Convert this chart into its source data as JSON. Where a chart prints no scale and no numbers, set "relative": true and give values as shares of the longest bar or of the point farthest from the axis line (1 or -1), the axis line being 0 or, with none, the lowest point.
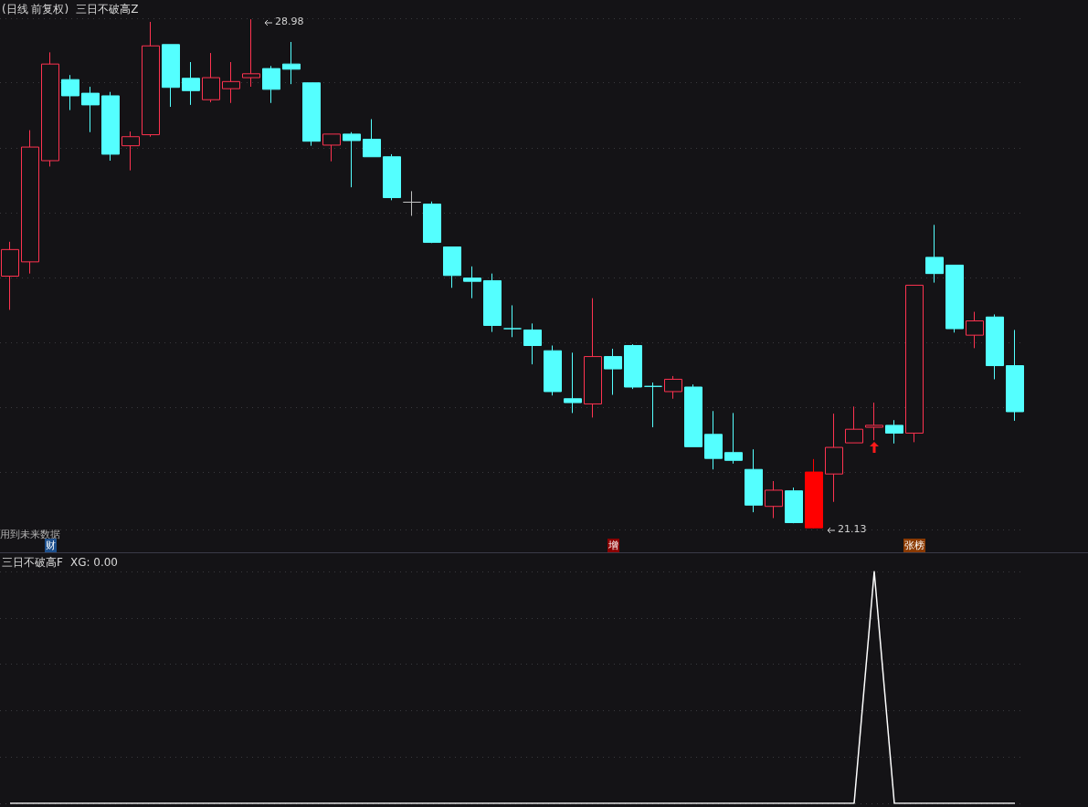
{
  "chart_data": [
    {
      "type": "candlestick",
      "title": "(日线 前复权)",
      "subtitle": "三日不破高Z",
      "grid": "y",
      "categories": [
        null,
        null,
        null,
        null,
        null,
        null,
        null,
        null,
        null,
        null,
        null,
        null,
        null,
        null,
        null,
        null,
        null,
        null,
        null,
        null,
        null,
        null,
        null,
        null,
        null,
        null,
        null,
        null,
        null,
        null,
        null,
        null,
        null,
        null,
        null,
        null,
        null,
        null,
        null,
        null,
        null,
        null,
        null,
        null,
        null,
        null,
        null,
        null,
        null,
        null,
        null
      ],
      "ohlc": [
        [
          25.02,
          25.55,
          24.5,
          25.43
        ],
        [
          25.24,
          27.27,
          25.06,
          27.01
        ],
        [
          26.8,
          28.47,
          26.71,
          28.29
        ],
        [
          28.05,
          28.12,
          27.58,
          27.8
        ],
        [
          27.84,
          27.94,
          27.24,
          27.66
        ],
        [
          27.8,
          27.86,
          26.8,
          26.9
        ],
        [
          27.03,
          27.25,
          26.65,
          27.17
        ],
        [
          27.2,
          28.94,
          27.17,
          28.57
        ],
        [
          28.59,
          28.59,
          27.63,
          27.93
        ],
        [
          28.07,
          28.32,
          27.66,
          27.88
        ],
        [
          27.74,
          28.46,
          27.7,
          28.08
        ],
        [
          27.91,
          28.32,
          27.69,
          28.02
        ],
        [
          28.08,
          28.98,
          27.94,
          28.14
        ],
        [
          28.22,
          28.26,
          27.69,
          27.9
        ],
        [
          28.29,
          28.63,
          27.98,
          28.21
        ],
        [
          28.0,
          28.0,
          27.03,
          27.1
        ],
        [
          27.04,
          27.21,
          26.79,
          27.21
        ],
        [
          27.21,
          27.24,
          26.39,
          27.11
        ],
        [
          27.13,
          27.44,
          26.86,
          26.86
        ],
        [
          26.86,
          26.9,
          26.19,
          26.23
        ],
        [
          26.16,
          26.33,
          25.95,
          26.16
        ],
        [
          26.13,
          26.17,
          25.53,
          25.54
        ],
        [
          25.47,
          25.47,
          24.84,
          25.03
        ],
        [
          24.99,
          25.17,
          24.68,
          24.94
        ],
        [
          24.95,
          25.06,
          24.16,
          24.26
        ],
        [
          24.21,
          24.57,
          24.08,
          24.21
        ],
        [
          24.19,
          24.29,
          23.66,
          23.95
        ],
        [
          23.87,
          23.95,
          23.18,
          23.24
        ],
        [
          23.13,
          23.84,
          22.91,
          23.07
        ],
        [
          23.05,
          24.68,
          22.84,
          23.78
        ],
        [
          23.78,
          23.9,
          23.19,
          23.59
        ],
        [
          23.95,
          23.97,
          23.28,
          23.31
        ],
        [
          23.32,
          23.38,
          22.69,
          23.32
        ],
        [
          23.24,
          23.48,
          23.13,
          23.43
        ],
        [
          23.31,
          23.35,
          22.39,
          22.39
        ],
        [
          22.58,
          22.94,
          22.04,
          22.21
        ],
        [
          22.3,
          22.91,
          22.13,
          22.18
        ],
        [
          22.04,
          22.35,
          21.38,
          21.49
        ],
        [
          21.47,
          21.86,
          21.29,
          21.72
        ],
        [
          21.71,
          21.76,
          21.21,
          21.22
        ],
        [
          21.14,
          22.2,
          21.13,
          22.0
        ],
        [
          21.97,
          22.9,
          21.54,
          22.38
        ],
        [
          22.45,
          23.01,
          22.45,
          22.66
        ],
        [
          22.69,
          23.07,
          22.49,
          22.72
        ],
        [
          22.72,
          22.8,
          22.44,
          22.6
        ],
        [
          22.6,
          24.88,
          22.46,
          24.88
        ],
        [
          25.31,
          25.81,
          24.92,
          25.06
        ],
        [
          25.19,
          25.19,
          24.15,
          24.21
        ],
        [
          24.11,
          24.47,
          23.91,
          24.33
        ],
        [
          24.39,
          24.43,
          23.43,
          23.64
        ],
        [
          23.64,
          24.19,
          22.79,
          22.93
        ]
      ],
      "colors": [
        "#ff3350",
        "#ff3350",
        "#ff3350",
        "#54ffff",
        "#54ffff",
        "#54ffff",
        "#ff3350",
        "#ff3350",
        "#54ffff",
        "#54ffff",
        "#ff3350",
        "#ff3350",
        "#ff3350",
        "#54ffff",
        "#54ffff",
        "#54ffff",
        "#ff3350",
        "#54ffff",
        "#54ffff",
        "#54ffff",
        "#c0c0c0",
        "#54ffff",
        "#54ffff",
        "#54ffff",
        "#54ffff",
        "#54ffff",
        "#54ffff",
        "#54ffff",
        "#54ffff",
        "#ff3350",
        "#54ffff",
        "#54ffff",
        "#54ffff",
        "#ff3350",
        "#54ffff",
        "#54ffff",
        "#54ffff",
        "#54ffff",
        "#ff3350",
        "#54ffff",
        "#ff0000",
        "#ff3350",
        "#ff3350",
        "#ff3350",
        "#54ffff",
        "#ff3350",
        "#54ffff",
        "#54ffff",
        "#ff3350",
        "#54ffff",
        "#54ffff"
      ],
      "annotations": [
        "用到未来数据",
        "财",
        "增",
        "张榜",
        "28.98",
        "21.13"
      ]
    },
    {
      "type": "line",
      "title": "三日不破高F",
      "subtitle": "XG: 0.00",
      "relative": true,
      "grid": "y",
      "marker": "none",
      "categories": [
        null,
        null,
        null,
        null,
        null,
        null,
        null,
        null,
        null,
        null,
        null,
        null,
        null,
        null,
        null,
        null,
        null,
        null,
        null,
        null,
        null,
        null,
        null,
        null,
        null,
        null,
        null,
        null,
        null,
        null,
        null,
        null,
        null,
        null,
        null,
        null,
        null,
        null,
        null,
        null,
        null,
        null,
        null,
        null,
        null,
        null,
        null,
        null,
        null,
        null,
        null
      ],
      "series": [
        {
          "color": "#ffffff",
          "values": [
            0,
            0,
            0,
            0,
            0,
            0,
            0,
            0,
            0,
            0,
            0,
            0,
            0,
            0,
            0,
            0,
            0,
            0,
            0,
            0,
            0,
            0,
            0,
            0,
            0,
            0,
            0,
            0,
            0,
            0,
            0,
            0,
            0,
            0,
            0,
            0,
            0,
            0,
            0,
            0,
            0,
            0,
            0,
            1,
            0,
            0,
            0,
            0,
            0,
            0,
            0
          ]
        }
      ]
    }
  ]
}
